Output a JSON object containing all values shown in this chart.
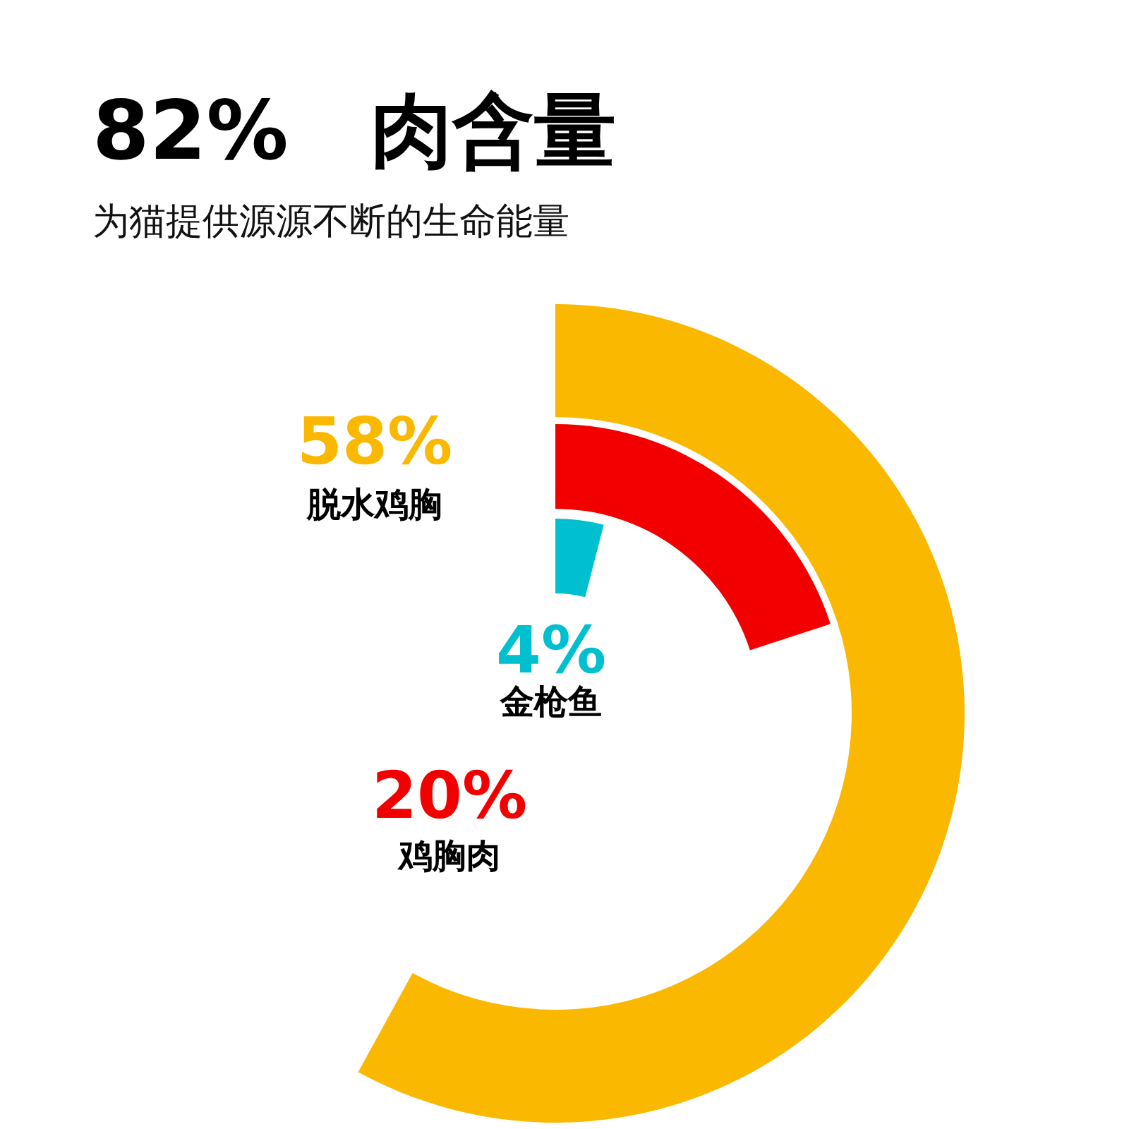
{
  "chart_data": {
    "type": "other",
    "title": "82%　肉含量",
    "subtitle": "为猫提供源源不断的生命能量",
    "categories": [
      "脱水鸡胸",
      "鸡胸肉",
      "金枪鱼"
    ],
    "values": [
      58,
      20,
      4
    ],
    "value_labels": [
      "58%",
      "20%",
      "4%"
    ],
    "colors": [
      "#fbb800",
      "#f20000",
      "#00c0d0"
    ]
  }
}
